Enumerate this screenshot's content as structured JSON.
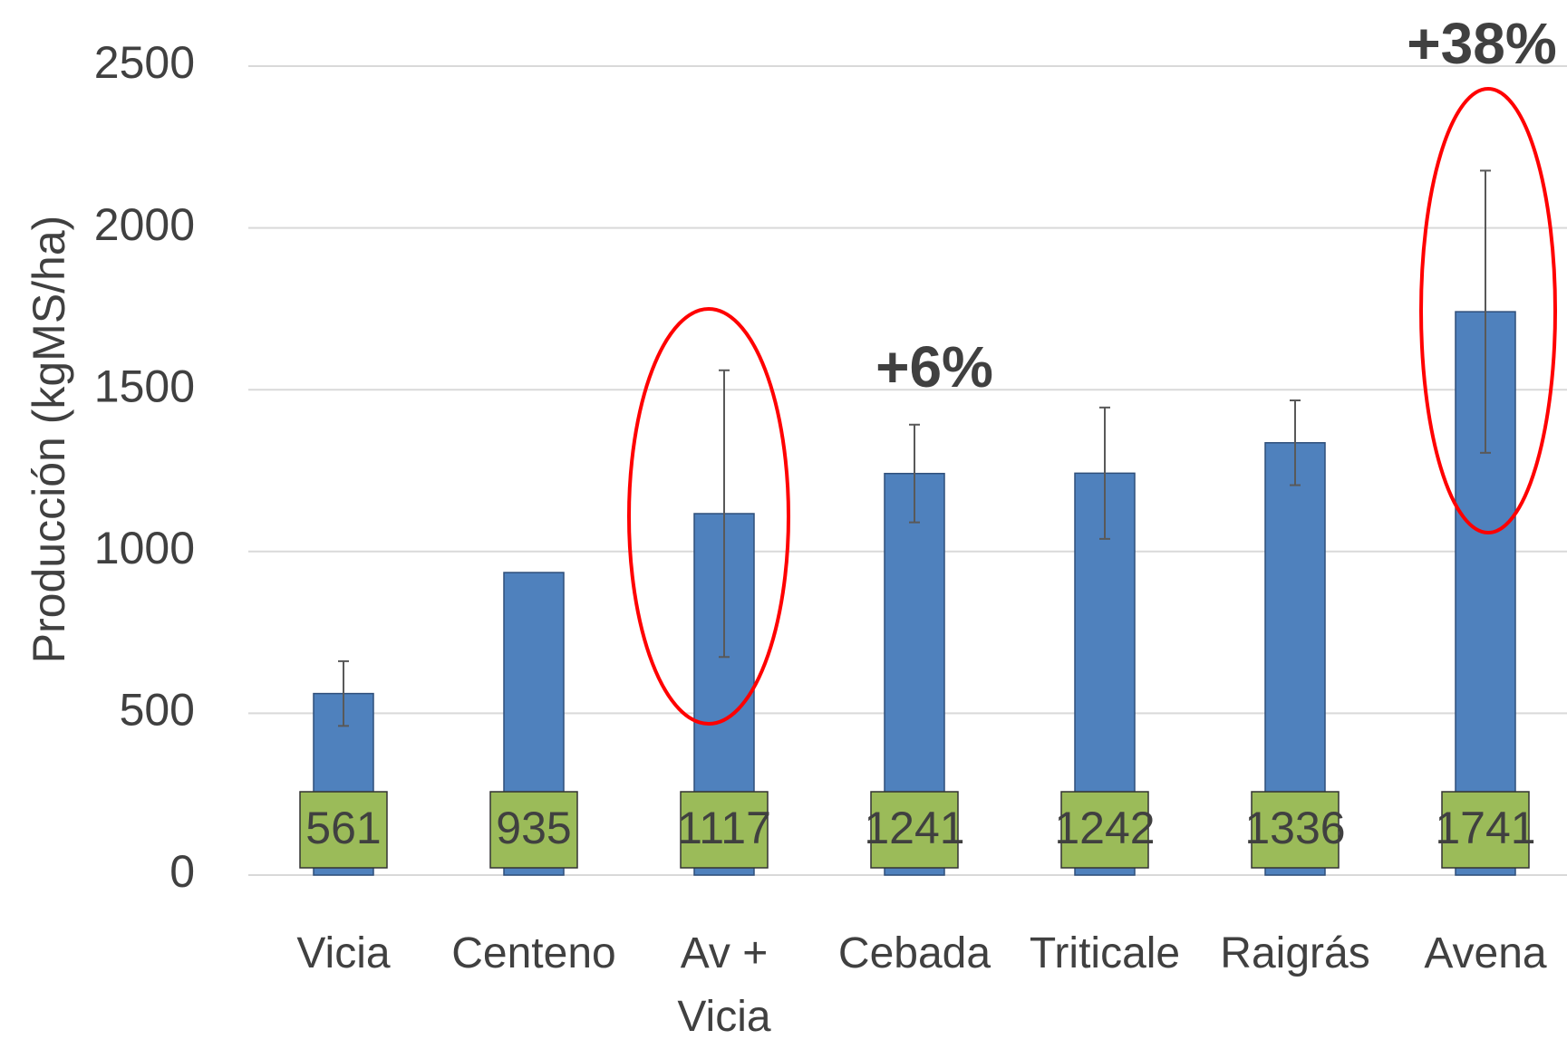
{
  "chart_data": {
    "type": "bar",
    "ylabel": "Producción (kgMS/ha)",
    "categories": [
      "Vicia",
      "Centeno",
      "Av + Vicia",
      "Cebada",
      "Triticale",
      "Raigrás",
      "Avena"
    ],
    "values": [
      561,
      935,
      1117,
      1241,
      1242,
      1336,
      1741
    ],
    "errors": [
      100,
      null,
      443,
      151,
      203,
      131,
      436
    ],
    "color": "#4f81bd",
    "label_color": "#9bbb59",
    "ylim": [
      0,
      2500
    ],
    "yticks": [
      0,
      500,
      1000,
      1500,
      2000,
      2500
    ],
    "grid": true,
    "annotations": [
      "+6%",
      "+38%"
    ]
  }
}
